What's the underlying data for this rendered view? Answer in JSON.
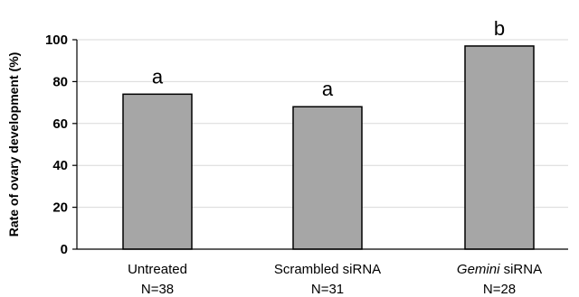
{
  "chart_data": {
    "type": "bar",
    "title": "",
    "xlabel": "",
    "ylabel": "Rate of ovary development (%)",
    "ylim": [
      0,
      100
    ],
    "yticks": [
      0,
      20,
      40,
      60,
      80,
      100
    ],
    "grid": true,
    "categories": [
      {
        "name_prefix": "",
        "name_italic": "",
        "name_suffix": "Untreated",
        "n_label": "N=38"
      },
      {
        "name_prefix": "",
        "name_italic": "",
        "name_suffix": "Scrambled siRNA",
        "n_label": "N=31"
      },
      {
        "name_prefix": "",
        "name_italic": "Gemini",
        "name_suffix": " siRNA",
        "n_label": "N=28"
      }
    ],
    "values": [
      74,
      68,
      97
    ],
    "significance_letters": [
      "a",
      "a",
      "b"
    ],
    "colors": {
      "bar_fill": "#a6a6a6",
      "bar_stroke": "#000000",
      "grid": "#d9d9d9",
      "axis": "#000000"
    }
  }
}
